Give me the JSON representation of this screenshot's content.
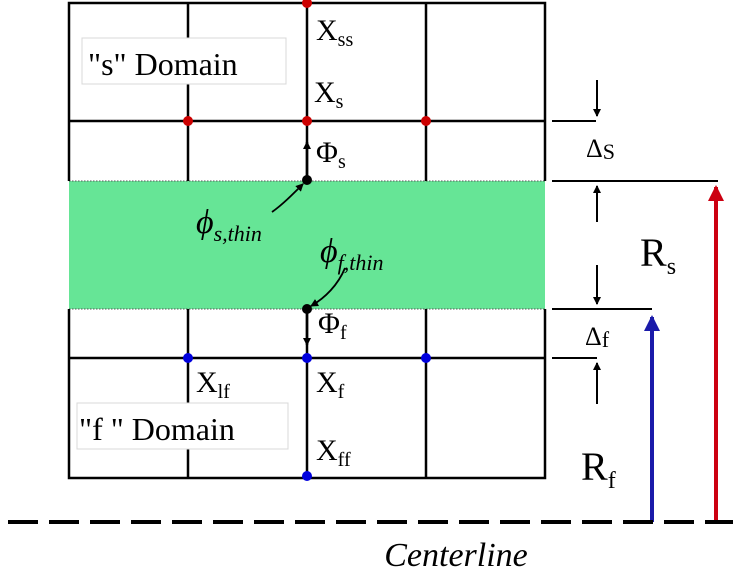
{
  "colors": {
    "thin_region": "#66e596",
    "grid_line": "#000000",
    "s_node": "#cc0000",
    "f_node": "#0000dd",
    "r_s_arrow": "#cc0011",
    "r_f_arrow": "#1a1aaa",
    "interface_point": "#000000"
  },
  "labels": {
    "s_domain": "\"s\" Domain",
    "f_domain": "\"f \" Domain",
    "x_ss": {
      "base": "X",
      "sub": "ss"
    },
    "x_s": {
      "base": "X",
      "sub": "s"
    },
    "x_f": {
      "base": "X",
      "sub": "f"
    },
    "x_ff": {
      "base": "X",
      "sub": "ff"
    },
    "x_lf": {
      "base": "X",
      "sub": "lf"
    },
    "flux_s": {
      "base": "Φ",
      "sub": "s"
    },
    "flux_f": {
      "base": "Φ",
      "sub": "f"
    },
    "phi_s_thin": {
      "base": "ϕ",
      "sub": "s,thin"
    },
    "phi_f_thin": {
      "base": "ϕ",
      "sub": "f,thin"
    },
    "delta_s": {
      "base": "Δ",
      "sub": "S"
    },
    "delta_f": {
      "base": "Δ",
      "sub": "f"
    },
    "r_s": {
      "base": "R",
      "sub": "s"
    },
    "r_f": {
      "base": "R",
      "sub": "f"
    },
    "centerline": "Centerline"
  },
  "icons": {
    "flux_arrow": "arrow-icon",
    "dimension_arrow": "arrow-icon"
  }
}
